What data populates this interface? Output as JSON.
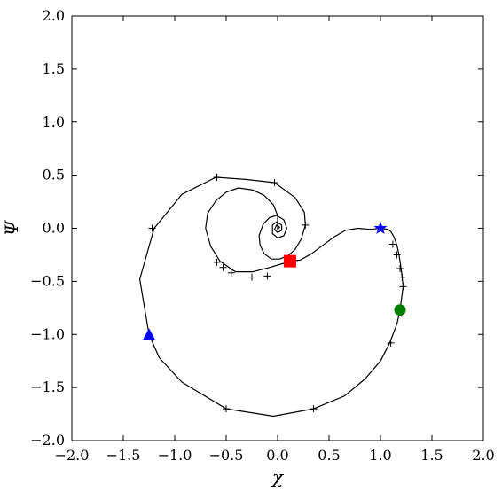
{
  "chart_data": {
    "type": "line",
    "xlabel": "χ",
    "ylabel": "Ψ",
    "xlim": [
      -2.0,
      2.0
    ],
    "ylim": [
      -2.0,
      2.0
    ],
    "xticks": [
      "−2.0",
      "−1.5",
      "−1.0",
      "−0.5",
      "0.0",
      "0.5",
      "1.0",
      "1.5",
      "2.0"
    ],
    "yticks": [
      "−2.0",
      "−1.5",
      "−1.0",
      "−0.5",
      "0.0",
      "0.5",
      "1.0",
      "1.5",
      "2.0"
    ],
    "xtick_values": [
      -2.0,
      -1.5,
      -1.0,
      -0.5,
      0.0,
      0.5,
      1.0,
      1.5,
      2.0
    ],
    "ytick_values": [
      -2.0,
      -1.5,
      -1.0,
      -0.5,
      0.0,
      0.5,
      1.0,
      1.5,
      2.0
    ],
    "grid": false,
    "line_color": "#000000",
    "outer_trajectory": [
      [
        -1.25,
        -1.0
      ],
      [
        -1.15,
        -1.22
      ],
      [
        -0.93,
        -1.45
      ],
      [
        -0.5,
        -1.7
      ],
      [
        -0.04,
        -1.77
      ],
      [
        0.35,
        -1.7
      ],
      [
        0.65,
        -1.58
      ],
      [
        0.85,
        -1.42
      ],
      [
        1.0,
        -1.25
      ],
      [
        1.09,
        -1.08
      ],
      [
        1.16,
        -0.9
      ],
      [
        1.19,
        -0.77
      ],
      [
        1.21,
        -0.62
      ],
      [
        1.22,
        -0.55
      ],
      [
        1.21,
        -0.46
      ],
      [
        1.2,
        -0.38
      ],
      [
        1.18,
        -0.25
      ],
      [
        1.16,
        -0.16
      ],
      [
        1.13,
        -0.08
      ],
      [
        1.1,
        -0.03
      ],
      [
        1.07,
        -0.01
      ],
      [
        1.0,
        0.0
      ]
    ],
    "upper_trajectory": [
      [
        -1.25,
        -1.0
      ],
      [
        -1.34,
        -0.48
      ],
      [
        -1.2,
        0.0
      ],
      [
        -0.93,
        0.32
      ],
      [
        -0.6,
        0.48
      ],
      [
        -0.31,
        0.46
      ],
      [
        -0.03,
        0.43
      ],
      [
        0.17,
        0.29
      ],
      [
        0.26,
        0.15
      ],
      [
        0.27,
        0.03
      ],
      [
        0.23,
        -0.1
      ],
      [
        0.17,
        -0.2
      ],
      [
        0.1,
        -0.26
      ],
      [
        0.02,
        -0.29
      ],
      [
        -0.06,
        -0.29
      ],
      [
        -0.13,
        -0.24
      ],
      [
        -0.17,
        -0.16
      ],
      [
        -0.18,
        -0.07
      ],
      [
        -0.14,
        0.04
      ],
      [
        -0.08,
        0.1
      ],
      [
        -0.01,
        0.12
      ],
      [
        0.06,
        0.08
      ],
      [
        0.09,
        0.0
      ],
      [
        0.06,
        -0.07
      ],
      [
        0.0,
        -0.09
      ],
      [
        -0.05,
        -0.05
      ],
      [
        -0.05,
        0.03
      ],
      [
        -0.01,
        0.06
      ],
      [
        0.04,
        0.03
      ],
      [
        0.04,
        -0.02
      ],
      [
        0.0,
        -0.04
      ],
      [
        -0.03,
        -0.01
      ],
      [
        -0.01,
        0.03
      ],
      [
        0.02,
        0.01
      ],
      [
        0.0,
        -0.01
      ],
      [
        0.0,
        0.0
      ]
    ],
    "lower_trajectory": [
      [
        0.12,
        -0.31
      ],
      [
        0.06,
        -0.33
      ],
      [
        -0.08,
        -0.37
      ],
      [
        -0.24,
        -0.41
      ],
      [
        -0.41,
        -0.41
      ],
      [
        -0.56,
        -0.31
      ],
      [
        -0.65,
        -0.17
      ],
      [
        -0.7,
        0.0
      ],
      [
        -0.68,
        0.14
      ],
      [
        -0.6,
        0.26
      ],
      [
        -0.5,
        0.34
      ],
      [
        -0.38,
        0.38
      ],
      [
        -0.24,
        0.36
      ],
      [
        -0.13,
        0.31
      ],
      [
        -0.04,
        0.22
      ],
      [
        0.0,
        0.12
      ],
      [
        0.0,
        0.0
      ]
    ],
    "connector": [
      [
        0.12,
        -0.31
      ],
      [
        0.22,
        -0.3
      ],
      [
        0.33,
        -0.24
      ],
      [
        0.44,
        -0.16
      ],
      [
        0.55,
        -0.08
      ],
      [
        0.66,
        -0.02
      ],
      [
        0.78,
        0.0
      ],
      [
        0.9,
        -0.01
      ],
      [
        1.0,
        0.0
      ]
    ],
    "tick_marks": [
      [
        -1.22,
        0.0
      ],
      [
        -0.59,
        0.48
      ],
      [
        -0.03,
        0.43
      ],
      [
        0.27,
        0.03
      ],
      [
        -0.59,
        -0.32
      ],
      [
        -0.53,
        -0.37
      ],
      [
        -0.45,
        -0.42
      ],
      [
        -0.25,
        -0.46
      ],
      [
        -0.1,
        -0.45
      ],
      [
        -0.5,
        -1.7
      ],
      [
        0.35,
        -1.7
      ],
      [
        0.85,
        -1.42
      ],
      [
        1.1,
        -1.08
      ],
      [
        1.12,
        -0.15
      ],
      [
        1.16,
        -0.25
      ],
      [
        1.19,
        -0.38
      ],
      [
        1.21,
        -0.46
      ],
      [
        1.22,
        -0.55
      ],
      [
        1.2,
        -0.8
      ]
    ],
    "markers": [
      {
        "shape": "triangle",
        "color": "#0000ff",
        "x": -1.25,
        "y": -1.0
      },
      {
        "shape": "star",
        "color": "#0000ff",
        "x": 1.0,
        "y": 0.0
      },
      {
        "shape": "square",
        "color": "#ff0000",
        "x": 0.12,
        "y": -0.31
      },
      {
        "shape": "circle",
        "color": "#008000",
        "x": 1.19,
        "y": -0.77
      }
    ]
  }
}
